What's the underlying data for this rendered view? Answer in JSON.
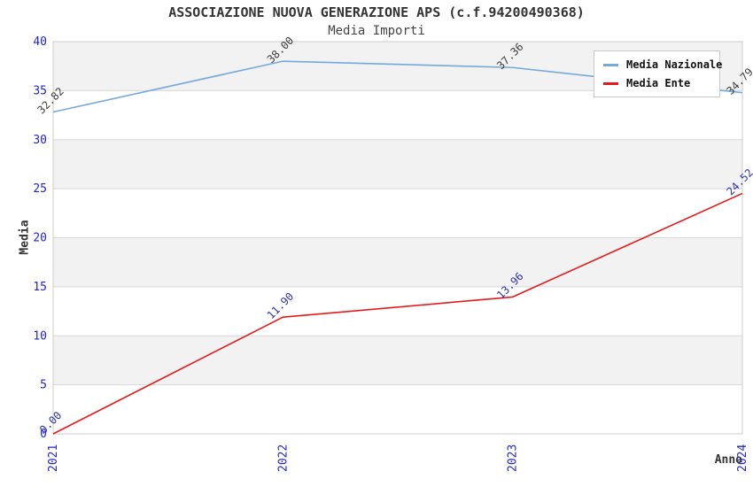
{
  "chart_data": {
    "type": "line",
    "title": "ASSOCIAZIONE NUOVA GENERAZIONE APS (c.f.94200490368)",
    "subtitle": "Media Importi",
    "xlabel": "Anno",
    "ylabel": "Media",
    "categories": [
      "2021",
      "2022",
      "2023",
      "2024"
    ],
    "series": [
      {
        "name": "Media Nazionale",
        "values": [
          32.82,
          38.0,
          37.36,
          34.79
        ],
        "labels": [
          "32.82",
          "38.00",
          "37.36",
          "34.79"
        ],
        "color": "#74a9dc",
        "label_color": "#3c3c3c"
      },
      {
        "name": "Media Ente",
        "values": [
          0.0,
          11.9,
          13.96,
          24.52
        ],
        "labels": [
          "0.00",
          "11.90",
          "13.96",
          "24.52"
        ],
        "color": "#e41b1b",
        "label_color": "#3030aa"
      }
    ],
    "ylim": [
      0,
      40
    ],
    "ytick_step": 5,
    "yticks": [
      0,
      5,
      10,
      15,
      20,
      25,
      30,
      35,
      40
    ],
    "grid": "horizontal-bands",
    "legend_position": "top-right",
    "colors": {
      "tick": "#2424cc",
      "band": "#f2f2f2",
      "grid": "#d8d8d8",
      "axis": "#cccccc",
      "title": "#333333",
      "subtitle": "#444444"
    }
  }
}
